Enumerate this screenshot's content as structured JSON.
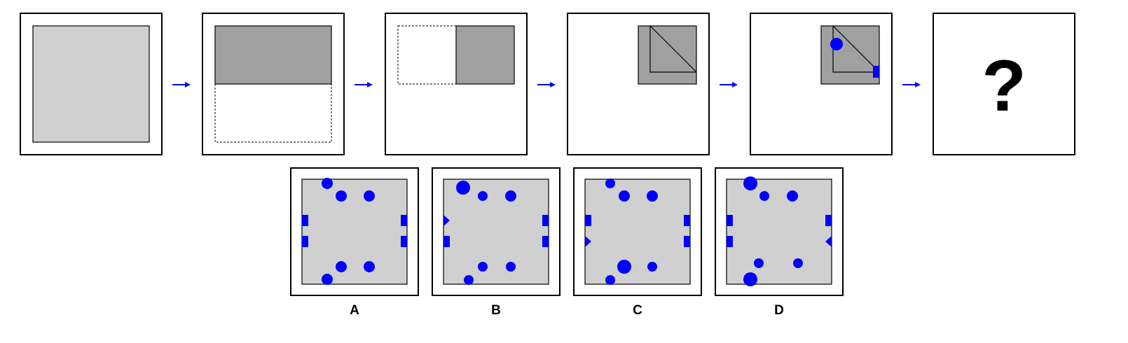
{
  "puzzle": {
    "steps": [
      {
        "name": "unfolded-paper"
      },
      {
        "name": "fold-bottom-up"
      },
      {
        "name": "fold-left-to-right"
      },
      {
        "name": "fold-diagonal"
      },
      {
        "name": "punch-holes"
      },
      {
        "name": "question"
      }
    ],
    "question_mark": "?",
    "arrow_count": 5
  },
  "options": [
    {
      "label": "A"
    },
    {
      "label": "B"
    },
    {
      "label": "C"
    },
    {
      "label": "D"
    }
  ],
  "colors": {
    "paper_gray": "#d0d0d0",
    "folded_gray": "#a0a0a0",
    "hole_blue": "#0000ff",
    "frame": "#000000"
  },
  "icons": {
    "arrow": "arrow-right-icon",
    "hole_circle": "circle-hole-icon",
    "hole_square": "square-notch-icon",
    "hole_triangle": "triangle-notch-icon"
  }
}
